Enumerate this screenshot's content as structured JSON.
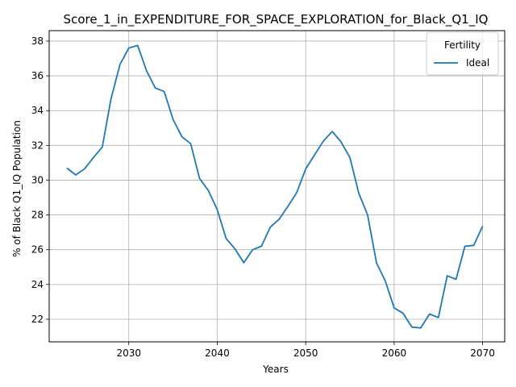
{
  "chart_data": {
    "type": "line",
    "title": "Score_1_in_EXPENDITURE_FOR_SPACE_EXPLORATION_for_Black_Q1_IQ",
    "xlabel": "Years",
    "ylabel": "% of Black Q1_IQ Population",
    "xlim": [
      2021,
      2072.5
    ],
    "ylim": [
      20.7,
      38.6
    ],
    "xticks": [
      2030,
      2040,
      2050,
      2060,
      2070
    ],
    "yticks": [
      22,
      24,
      26,
      28,
      30,
      32,
      34,
      36,
      38
    ],
    "grid": true,
    "legend": {
      "title": "Fertility",
      "placement": "top-right"
    },
    "series": [
      {
        "name": "Ideal",
        "color": "#1f77b4",
        "x": [
          2023,
          2024,
          2025,
          2026,
          2027,
          2028,
          2029,
          2030,
          2031,
          2032,
          2033,
          2034,
          2035,
          2036,
          2037,
          2038,
          2039,
          2040,
          2041,
          2042,
          2043,
          2044,
          2045,
          2046,
          2047,
          2048,
          2049,
          2050,
          2051,
          2052,
          2053,
          2054,
          2055,
          2056,
          2057,
          2058,
          2059,
          2060,
          2061,
          2062,
          2063,
          2064,
          2065,
          2066,
          2067,
          2068,
          2069,
          2070
        ],
        "values": [
          30.7,
          30.3,
          30.65,
          31.3,
          31.9,
          34.7,
          36.65,
          37.6,
          37.75,
          36.3,
          35.3,
          35.1,
          33.5,
          32.5,
          32.1,
          30.1,
          29.4,
          28.3,
          26.65,
          26.05,
          25.25,
          26.0,
          26.2,
          27.3,
          27.75,
          28.5,
          29.3,
          30.65,
          31.45,
          32.25,
          32.8,
          32.2,
          31.3,
          29.25,
          28.0,
          25.25,
          24.2,
          22.65,
          22.35,
          21.55,
          21.5,
          22.3,
          22.1,
          24.5,
          24.3,
          26.2,
          26.25,
          27.35
        ]
      }
    ]
  }
}
